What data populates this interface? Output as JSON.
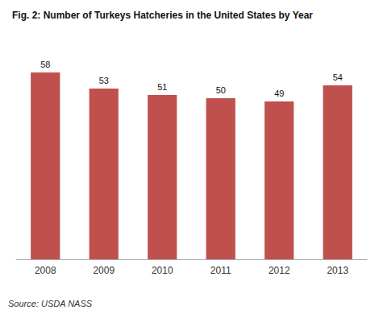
{
  "chart_data": {
    "type": "bar",
    "title": "Fig. 2: Number of Turkeys Hatcheries in the United States by Year",
    "categories": [
      "2008",
      "2009",
      "2010",
      "2011",
      "2012",
      "2013"
    ],
    "values": [
      58,
      53,
      51,
      50,
      49,
      54
    ],
    "color": "#c0504d",
    "ylim": [
      0,
      65
    ],
    "grid": false,
    "data_labels": true,
    "tick_labels": "x",
    "annotation": "Source: USDA NASS"
  }
}
